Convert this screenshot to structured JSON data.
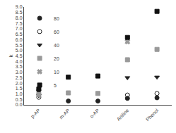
{
  "chart_data": {
    "type": "scatter",
    "categories": [
      "p-AP",
      "m-AP",
      "o-AP",
      "Aniline",
      "Phenol"
    ],
    "series": [
      {
        "name": "80",
        "color": "#222222",
        "marker": "circle",
        "values": [
          1.35,
          0.35,
          0.35,
          0.6,
          0.65
        ]
      },
      {
        "name": "60",
        "color": "#222222",
        "marker": "circle-open",
        "values": [
          0.7,
          null,
          null,
          0.9,
          1.05
        ]
      },
      {
        "name": "40",
        "color": "#222222",
        "marker": "triangle-down",
        "values": [
          0.85,
          null,
          null,
          2.5,
          2.55
        ]
      },
      {
        "name": "20",
        "color": "#999999",
        "marker": "square",
        "values": [
          0.95,
          1.1,
          1.05,
          4.15,
          5.1
        ]
      },
      {
        "name": "10",
        "color": "#999999",
        "marker": "x",
        "values": [
          null,
          null,
          null,
          5.8,
          null
        ]
      },
      {
        "name": "5",
        "color": "#111111",
        "marker": "square",
        "values": [
          1.45,
          2.55,
          2.65,
          6.2,
          8.6
        ]
      }
    ],
    "ylabel": "k",
    "ylim": [
      0.0,
      9.0
    ],
    "yticks": [
      {
        "value": 0,
        "label": "0.0"
      },
      0.5,
      {
        "value": 1,
        "label": "1.0"
      },
      1.5,
      {
        "value": 2,
        "label": "2.0"
      },
      2.5,
      {
        "value": 3,
        "label": "3.0"
      },
      3.5,
      {
        "value": 4,
        "label": "4.0"
      },
      4.5,
      {
        "value": 5,
        "label": "5.0"
      },
      5.5,
      {
        "value": 6,
        "label": "6.0"
      },
      6.5,
      {
        "value": 7,
        "label": "7.0"
      },
      7.5,
      {
        "value": 8,
        "label": "8.0"
      },
      8.5,
      {
        "value": 9,
        "label": "9.0"
      }
    ],
    "grid": false,
    "legend": "upper left"
  }
}
